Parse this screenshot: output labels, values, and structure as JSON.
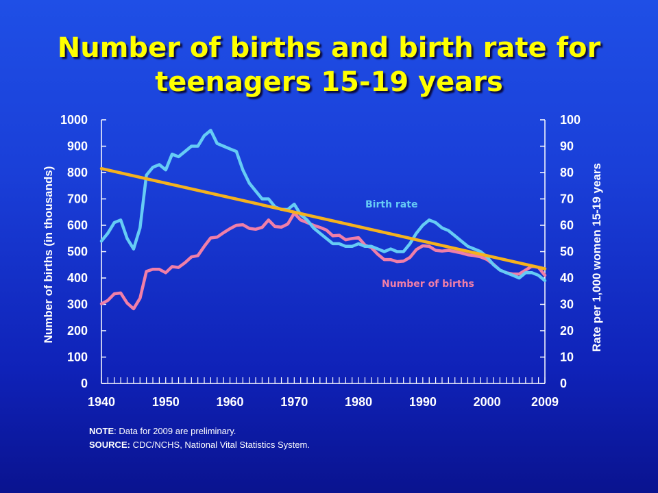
{
  "title": {
    "line1": "Number of births and birth rate for",
    "line2": "teenagers 15-19 years"
  },
  "notes": {
    "note_label": "NOTE",
    "note_text": ": Data for 2009 are preliminary.",
    "source_label": "SOURCE:",
    "source_text": "CDC/NCHS, National Vital Statistics System."
  },
  "colors": {
    "births": "#f07fa8",
    "rate": "#66ccf5",
    "trend": "#f5b21e",
    "axis": "#ffffff"
  },
  "chart_data": {
    "type": "line",
    "x_ticks": [
      1940,
      1950,
      1960,
      1970,
      1980,
      1990,
      2000,
      2009
    ],
    "xlim": [
      1940,
      2009
    ],
    "ylabel_left": "Number of births (in thousands)",
    "ylim_left": [
      0,
      1000
    ],
    "yticks_left": [
      0,
      100,
      200,
      300,
      400,
      500,
      600,
      700,
      800,
      900,
      1000
    ],
    "ylabel_right": "Rate per 1,000 women 15-19 years",
    "ylim_right": [
      0,
      100
    ],
    "yticks_right": [
      0,
      10,
      20,
      30,
      40,
      50,
      60,
      70,
      80,
      90,
      100
    ],
    "grid": false,
    "series": [
      {
        "name": "Number of births",
        "axis": "left",
        "x": [
          1940,
          1941,
          1942,
          1943,
          1944,
          1945,
          1946,
          1947,
          1948,
          1949,
          1950,
          1951,
          1952,
          1953,
          1954,
          1955,
          1956,
          1957,
          1958,
          1959,
          1960,
          1961,
          1962,
          1963,
          1964,
          1965,
          1966,
          1967,
          1968,
          1969,
          1970,
          1971,
          1972,
          1973,
          1974,
          1975,
          1976,
          1977,
          1978,
          1979,
          1980,
          1981,
          1982,
          1983,
          1984,
          1985,
          1986,
          1987,
          1988,
          1989,
          1990,
          1991,
          1992,
          1993,
          1994,
          1995,
          1996,
          1997,
          1998,
          1999,
          2000,
          2001,
          2002,
          2003,
          2004,
          2005,
          2006,
          2007,
          2008,
          2009
        ],
        "values": [
          302,
          315,
          340,
          343,
          305,
          283,
          323,
          425,
          433,
          433,
          420,
          443,
          440,
          458,
          480,
          485,
          520,
          552,
          555,
          572,
          587,
          600,
          602,
          588,
          585,
          592,
          620,
          595,
          593,
          605,
          646,
          620,
          610,
          600,
          592,
          582,
          560,
          562,
          545,
          550,
          553,
          525,
          515,
          490,
          470,
          470,
          462,
          464,
          478,
          508,
          522,
          520,
          505,
          502,
          505,
          500,
          495,
          488,
          485,
          480,
          470,
          452,
          430,
          420,
          415,
          415,
          430,
          445,
          440,
          410
        ]
      },
      {
        "name": "Birth rate",
        "axis": "right",
        "x": [
          1940,
          1941,
          1942,
          1943,
          1944,
          1945,
          1946,
          1947,
          1948,
          1949,
          1950,
          1951,
          1952,
          1953,
          1954,
          1955,
          1956,
          1957,
          1958,
          1959,
          1960,
          1961,
          1962,
          1963,
          1964,
          1965,
          1966,
          1967,
          1968,
          1969,
          1970,
          1971,
          1972,
          1973,
          1974,
          1975,
          1976,
          1977,
          1978,
          1979,
          1980,
          1981,
          1982,
          1983,
          1984,
          1985,
          1986,
          1987,
          1988,
          1989,
          1990,
          1991,
          1992,
          1993,
          1994,
          1995,
          1996,
          1997,
          1998,
          1999,
          2000,
          2001,
          2002,
          2003,
          2004,
          2005,
          2006,
          2007,
          2008,
          2009
        ],
        "values": [
          54,
          57,
          61,
          62,
          55,
          51,
          59,
          79,
          82,
          83,
          81,
          87,
          86,
          88,
          90,
          90,
          94,
          96,
          91,
          90,
          89,
          88,
          81,
          76,
          73,
          70,
          70,
          67,
          66,
          66,
          68,
          64,
          62,
          59,
          57,
          55,
          53,
          53,
          52,
          52,
          53,
          52,
          52,
          51,
          50,
          51,
          50,
          50,
          53,
          57,
          60,
          62,
          61,
          59,
          58,
          56,
          54,
          52,
          51,
          50,
          48,
          45,
          43,
          42,
          41,
          40,
          42,
          42,
          41,
          39
        ]
      },
      {
        "name": "Birth rate trend",
        "axis": "right",
        "x": [
          1940,
          2009
        ],
        "values": [
          81.5,
          43.5
        ]
      }
    ],
    "annotations": [
      "Birth rate",
      "Number of births"
    ]
  }
}
